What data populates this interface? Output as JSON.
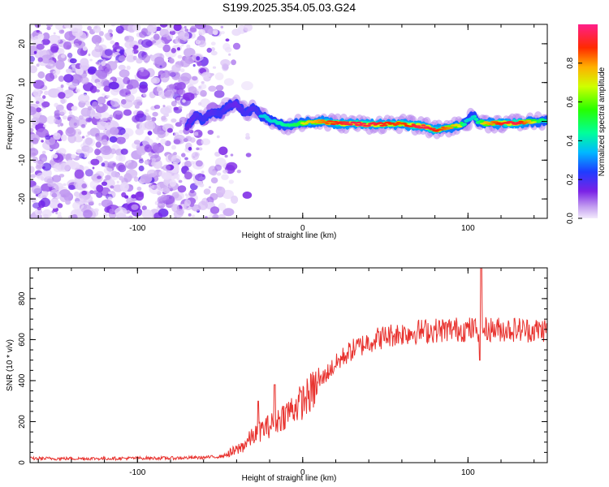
{
  "chart_data": [
    {
      "type": "heatmap",
      "title": "S199.2025.354.05.03.G24",
      "xlabel": "Height of straight line (km)",
      "ylabel": "Frequency (Hz)",
      "xlim": [
        -165,
        148
      ],
      "ylim": [
        -25,
        25
      ],
      "xticks": [
        "-100",
        "0",
        "100"
      ],
      "yticks": [
        "-20",
        "-10",
        "0",
        "10",
        "20"
      ],
      "colorbar": {
        "label": "Normalized spectral amplitude",
        "range": [
          0,
          1
        ],
        "ticks": [
          "0.0",
          "0.2",
          "0.4",
          "0.6",
          "0.8"
        ]
      },
      "noise_region_km": [
        -165,
        -50
      ],
      "ridge": {
        "x": [
          -70,
          -65,
          -60,
          -55,
          -50,
          -45,
          -40,
          -35,
          -30,
          -25,
          -20,
          -15,
          -10,
          -5,
          0,
          10,
          20,
          30,
          40,
          50,
          60,
          70,
          75,
          80,
          85,
          90,
          95,
          100,
          103,
          106,
          110,
          120,
          130,
          140,
          148
        ],
        "y": [
          -1.5,
          1.5,
          0.5,
          2.5,
          2.0,
          4.0,
          4.5,
          2.0,
          3.5,
          1.5,
          0.5,
          -0.5,
          -1.0,
          -0.8,
          -0.5,
          0.0,
          -0.5,
          -0.6,
          -0.8,
          -0.7,
          -0.6,
          -1.2,
          -1.5,
          -2.3,
          -1.8,
          -1.5,
          -1.0,
          0.0,
          1.5,
          0.0,
          -0.5,
          -0.5,
          -0.4,
          0.0,
          0.2
        ],
        "amplitude": [
          0.35,
          0.4,
          0.45,
          0.4,
          0.45,
          0.4,
          0.35,
          0.45,
          0.4,
          0.5,
          0.5,
          0.55,
          0.6,
          0.65,
          0.7,
          0.8,
          0.9,
          0.95,
          0.95,
          0.9,
          0.85,
          0.95,
          0.95,
          0.9,
          0.85,
          0.8,
          0.7,
          0.5,
          0.5,
          0.6,
          0.75,
          0.9,
          0.95,
          0.7,
          0.6
        ]
      }
    },
    {
      "type": "line",
      "title": "",
      "xlabel": "Height of straight line (km)",
      "ylabel": "SNR (10 * v/v)",
      "xlim": [
        -165,
        148
      ],
      "ylim": [
        0,
        950
      ],
      "xticks": [
        "-100",
        "0",
        "100"
      ],
      "yticks": [
        "0",
        "200",
        "400",
        "600",
        "800"
      ],
      "color": "#e8322e",
      "series": [
        {
          "name": "SNR",
          "x": [
            -165,
            -140,
            -120,
            -100,
            -80,
            -60,
            -50,
            -45,
            -40,
            -35,
            -30,
            -25,
            -20,
            -15,
            -10,
            -5,
            0,
            5,
            10,
            15,
            20,
            25,
            30,
            35,
            40,
            45,
            50,
            55,
            60,
            65,
            70,
            80,
            90,
            100,
            110,
            120,
            130,
            140,
            148
          ],
          "values": [
            20,
            20,
            20,
            22,
            22,
            25,
            30,
            40,
            60,
            90,
            130,
            160,
            180,
            210,
            240,
            270,
            300,
            340,
            390,
            440,
            480,
            520,
            550,
            570,
            590,
            605,
            615,
            625,
            630,
            635,
            640,
            645,
            650,
            650,
            650,
            650,
            650,
            645,
            650
          ]
        }
      ],
      "spikes": [
        {
          "x": -27,
          "value": 300
        },
        {
          "x": -17,
          "value": 380
        },
        {
          "x": 108,
          "value": 950
        },
        {
          "x": 107,
          "value": 500
        }
      ]
    }
  ]
}
